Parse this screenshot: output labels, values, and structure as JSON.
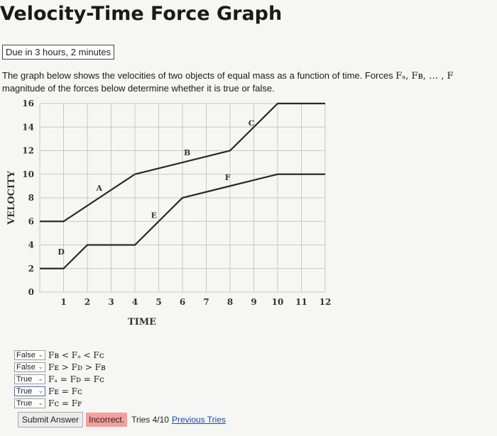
{
  "title": "Velocity-Time Force Graph",
  "due": "Due in 3 hours, 2 minutes",
  "prompt": {
    "line1": "The graph below shows the velocities of two objects of equal mass as a function of time. Forces ",
    "forces": "Fₐ, Fʙ, … , F",
    "line2": "magnitude of the forces below determine whether it is true or false."
  },
  "chart_data": {
    "type": "line",
    "xlabel": "TIME",
    "ylabel": "VELOCITY",
    "xlim": [
      0,
      12
    ],
    "ylim": [
      0,
      16
    ],
    "x_ticks": [
      "1",
      "2",
      "3",
      "4",
      "5",
      "6",
      "7",
      "8",
      "9",
      "10",
      "11",
      "12"
    ],
    "y_ticks": [
      "0",
      "2",
      "4",
      "6",
      "8",
      "10",
      "12",
      "14",
      "16"
    ],
    "series": [
      {
        "points": [
          [
            0,
            6
          ],
          [
            1,
            6
          ],
          [
            4,
            10
          ],
          [
            8,
            12
          ],
          [
            10,
            16
          ],
          [
            12,
            16
          ]
        ]
      },
      {
        "points": [
          [
            0,
            2
          ],
          [
            1,
            2
          ],
          [
            2,
            4
          ],
          [
            4,
            4
          ],
          [
            6,
            8
          ],
          [
            8,
            9
          ],
          [
            10,
            10
          ],
          [
            12,
            10
          ]
        ]
      }
    ],
    "segment_labels": [
      {
        "text": "A",
        "x": 2.5,
        "y": 8.6
      },
      {
        "text": "B",
        "x": 6.2,
        "y": 11.6
      },
      {
        "text": "C",
        "x": 8.9,
        "y": 14.1
      },
      {
        "text": "D",
        "x": 0.9,
        "y": 3.2
      },
      {
        "text": "E",
        "x": 4.8,
        "y": 6.3
      },
      {
        "text": "F",
        "x": 7.9,
        "y": 9.5
      }
    ]
  },
  "answers": [
    {
      "value": "False",
      "statement": "Fʙ < Fₐ < Fᴄ"
    },
    {
      "value": "False",
      "statement": "Fᴇ > Fᴅ > Fʙ"
    },
    {
      "value": "True",
      "statement": "Fₐ = Fᴅ = Fᴄ"
    },
    {
      "value": "True",
      "statement": "Fᴇ = Fᴄ"
    },
    {
      "value": "True",
      "statement": "Fᴄ = Fꜰ"
    }
  ],
  "footer": {
    "submit": "Submit Answer",
    "status": "Incorrect.",
    "tries": "Tries 4/10",
    "previous": "Previous Tries"
  }
}
